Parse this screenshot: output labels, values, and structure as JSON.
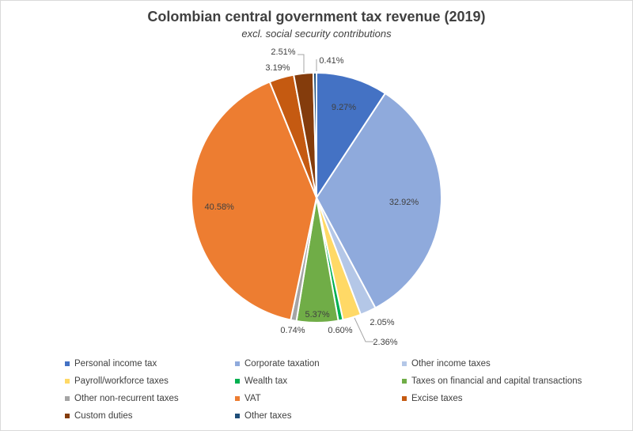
{
  "chart_data": {
    "type": "pie",
    "title": "Colombian central government tax revenue (2019)",
    "subtitle": "excl. social security contributions",
    "slices": [
      {
        "name": "Personal income tax",
        "value": 9.27,
        "label": "9.27%",
        "color": "#4472c4"
      },
      {
        "name": "Corporate taxation",
        "value": 32.92,
        "label": "32.92%",
        "color": "#8faadc"
      },
      {
        "name": "Other income taxes",
        "value": 2.05,
        "label": "2.05%",
        "color": "#b4c7e7"
      },
      {
        "name": "Payroll/workforce taxes",
        "value": 2.36,
        "label": "2.36%",
        "color": "#ffd966"
      },
      {
        "name": "Wealth tax",
        "value": 0.6,
        "label": "0.60%",
        "color": "#00b050"
      },
      {
        "name": "Taxes on financial and capital transactions",
        "value": 5.37,
        "label": "5.37%",
        "color": "#70ad47"
      },
      {
        "name": "Other non-recurrent taxes",
        "value": 0.74,
        "label": "0.74%",
        "color": "#a5a5a5"
      },
      {
        "name": "VAT",
        "value": 40.58,
        "label": "40.58%",
        "color": "#ed7d31"
      },
      {
        "name": "Excise taxes",
        "value": 3.19,
        "label": "3.19%",
        "color": "#c55a11"
      },
      {
        "name": "Custom duties",
        "value": 2.51,
        "label": "2.51%",
        "color": "#843c0c"
      },
      {
        "name": "Other taxes",
        "value": 0.41,
        "label": "0.41%",
        "color": "#1f4e79"
      }
    ],
    "legend_position": "bottom"
  }
}
